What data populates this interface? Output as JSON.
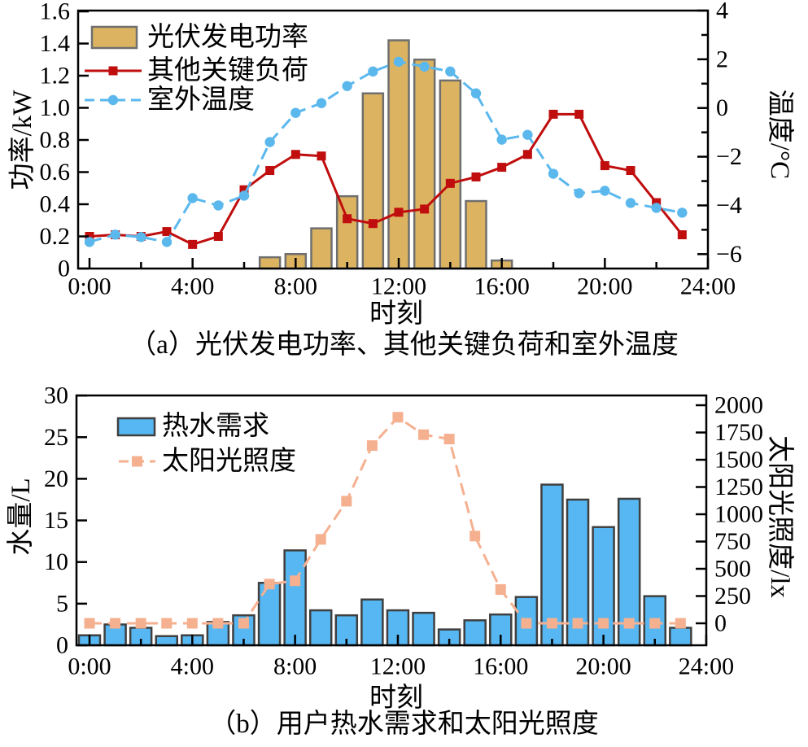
{
  "figure": {
    "background": "#ffffff",
    "frame_color": "#000000"
  },
  "chart_data": [
    {
      "id": "a",
      "type": "bar+line",
      "caption": "（a）光伏发电功率、其他关键负荷和室外温度",
      "xlabel": "时刻",
      "hours": [
        0,
        1,
        2,
        3,
        4,
        5,
        6,
        7,
        8,
        9,
        10,
        11,
        12,
        13,
        14,
        15,
        16,
        17,
        18,
        19,
        20,
        21,
        22,
        23
      ],
      "x_axis": {
        "major_ticks": [
          0,
          4,
          8,
          12,
          16,
          20,
          24
        ],
        "major_tick_labels": [
          "0:00",
          "4:00",
          "8:00",
          "12:00",
          "16:00",
          "20:00",
          "24:00"
        ],
        "minor_ticks": [
          2,
          6,
          10,
          14,
          18,
          22
        ]
      },
      "y_left": {
        "label": "功率/kW",
        "range": [
          0,
          1.6
        ],
        "ticks": [
          0,
          0.2,
          0.4,
          0.6,
          0.8,
          1.0,
          1.2,
          1.4,
          1.6
        ],
        "tick_labels": [
          "0",
          "0.2",
          "0.4",
          "0.6",
          "0.8",
          "1.0",
          "1.2",
          "1.4",
          "1.6"
        ]
      },
      "y_right": {
        "label": "温度/°C",
        "range": [
          -6.6,
          4
        ],
        "ticks": [
          4,
          2,
          0,
          -2,
          -4,
          -6
        ],
        "tick_labels": [
          "4",
          "2",
          "0",
          "−2",
          "−4",
          "−6"
        ],
        "minor_ticks": [
          3,
          1,
          -1,
          -3,
          -5
        ]
      },
      "series": [
        {
          "name": "光伏发电功率",
          "kind": "bar",
          "axis": "left",
          "fill": "#DCB360",
          "stroke": "#6F6F6F",
          "values": [
            0,
            0,
            0,
            0,
            0,
            0,
            0,
            0.07,
            0.09,
            0.25,
            0.45,
            1.09,
            1.42,
            1.3,
            1.17,
            0.42,
            0.05,
            0,
            0,
            0,
            0,
            0,
            0,
            0
          ]
        },
        {
          "name": "其他关键负荷",
          "kind": "line",
          "axis": "left",
          "color": "#C00D0D",
          "marker": "square",
          "line_style": "solid",
          "values": [
            0.2,
            0.21,
            0.2,
            0.23,
            0.15,
            0.2,
            0.49,
            0.61,
            0.71,
            0.7,
            0.31,
            0.28,
            0.35,
            0.37,
            0.53,
            0.57,
            0.63,
            0.71,
            0.96,
            0.96,
            0.64,
            0.61,
            0.41,
            0.21
          ]
        },
        {
          "name": "室外温度",
          "kind": "line",
          "axis": "right",
          "color": "#5BB8ED",
          "marker": "circle",
          "line_style": "dashed",
          "values": [
            -5.5,
            -5.2,
            -5.3,
            -5.5,
            -3.7,
            -4.0,
            -3.6,
            -1.4,
            -0.2,
            0.2,
            0.9,
            1.5,
            1.9,
            1.7,
            1.5,
            0.6,
            -1.3,
            -1.1,
            -2.7,
            -3.5,
            -3.4,
            -3.9,
            -4.1,
            -4.3
          ]
        }
      ]
    },
    {
      "id": "b",
      "type": "bar+line",
      "caption": "（b）用户热水需求和太阳光照度",
      "xlabel": "时刻",
      "hours": [
        0,
        1,
        2,
        3,
        4,
        5,
        6,
        7,
        8,
        9,
        10,
        11,
        12,
        13,
        14,
        15,
        16,
        17,
        18,
        19,
        20,
        21,
        22,
        23
      ],
      "x_axis": {
        "major_ticks": [
          0,
          4,
          8,
          12,
          16,
          20,
          24
        ],
        "major_tick_labels": [
          "0:00",
          "4:00",
          "8:00",
          "12:00",
          "16:00",
          "20:00",
          "24:00"
        ],
        "minor_ticks": [
          2,
          6,
          10,
          14,
          18,
          22
        ]
      },
      "y_left": {
        "label": "水量/L",
        "range": [
          0,
          30
        ],
        "ticks": [
          0,
          5,
          10,
          15,
          20,
          25,
          30
        ],
        "tick_labels": [
          "0",
          "5",
          "10",
          "15",
          "20",
          "25",
          "30"
        ]
      },
      "y_right": {
        "label": "太阳光照度/lx",
        "range": [
          -200,
          2100
        ],
        "ticks": [
          0,
          250,
          500,
          750,
          1000,
          1250,
          1500,
          1750,
          2000
        ],
        "tick_labels": [
          "0",
          "250",
          "500",
          "750",
          "1000",
          "1250",
          "1500",
          "1750",
          "2000"
        ],
        "minor_ticks": []
      },
      "series": [
        {
          "name": "热水需求",
          "kind": "bar",
          "axis": "left",
          "fill": "#56B7F2",
          "stroke": "#3F3F3F",
          "values": [
            1.2,
            2.5,
            2.1,
            1.1,
            1.2,
            2.8,
            3.6,
            7.5,
            11.4,
            4.2,
            3.6,
            5.5,
            4.2,
            3.9,
            1.9,
            3.0,
            3.7,
            5.8,
            19.3,
            17.5,
            14.2,
            17.6,
            5.9,
            2.1
          ]
        },
        {
          "name": "太阳光照度",
          "kind": "line",
          "axis": "right",
          "color": "#F5B090",
          "marker": "square",
          "line_style": "dashed",
          "values": [
            0,
            0,
            0,
            0,
            0,
            0,
            0,
            360,
            390,
            770,
            1120,
            1630,
            1890,
            1730,
            1690,
            800,
            310,
            0,
            0,
            0,
            0,
            0,
            0,
            0
          ]
        }
      ]
    }
  ]
}
